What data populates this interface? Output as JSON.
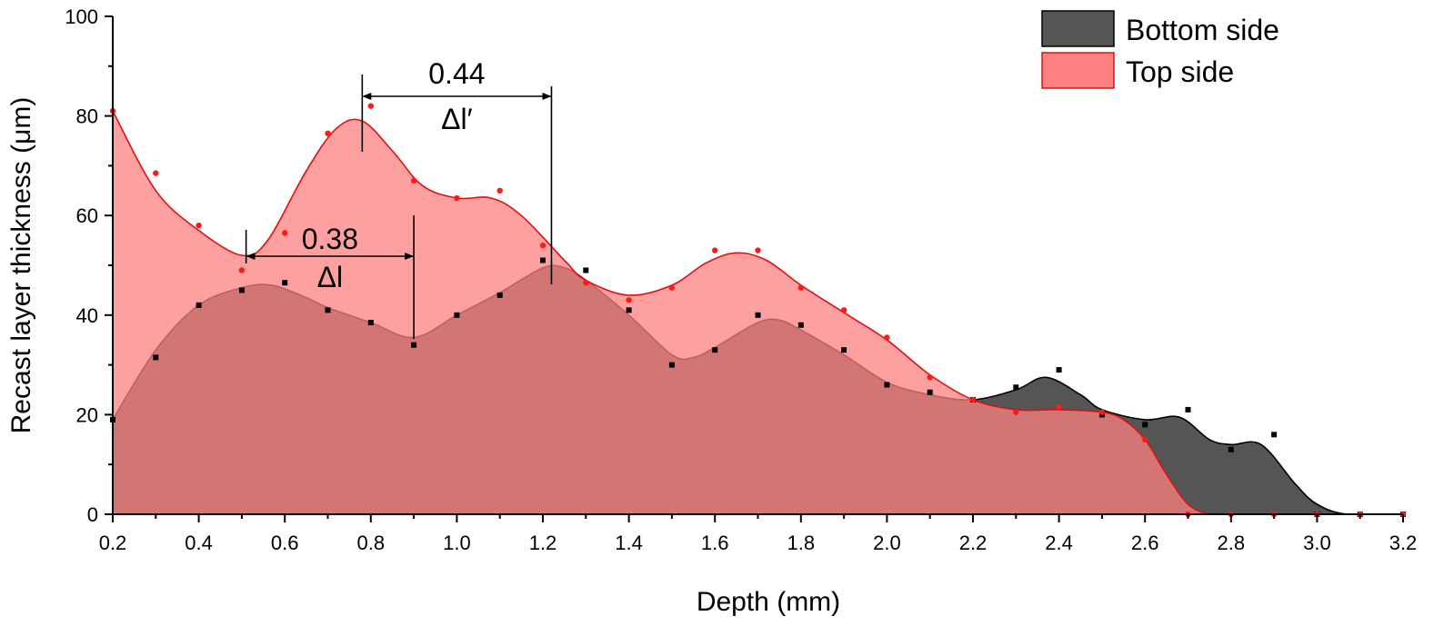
{
  "chart_data": {
    "type": "area",
    "xlabel": "Depth (mm)",
    "ylabel": "Recast layer thickness (μm)",
    "xlim": [
      0.2,
      3.2
    ],
    "ylim": [
      0,
      100
    ],
    "xticks": [
      "0.2",
      "0.4",
      "0.6",
      "0.8",
      "1.0",
      "1.2",
      "1.4",
      "1.6",
      "1.8",
      "2.0",
      "2.2",
      "2.4",
      "2.6",
      "2.8",
      "3.0",
      "3.2"
    ],
    "yticks": [
      "0",
      "20",
      "40",
      "60",
      "80",
      "100"
    ],
    "legend_position": "top-right",
    "series": [
      {
        "name": "Bottom side",
        "color": "#555555",
        "marker": "square",
        "points": {
          "x": [
            0.2,
            0.3,
            0.4,
            0.5,
            0.6,
            0.7,
            0.8,
            0.9,
            1.0,
            1.1,
            1.2,
            1.3,
            1.4,
            1.5,
            1.6,
            1.7,
            1.8,
            1.9,
            2.0,
            2.1,
            2.2,
            2.3,
            2.4,
            2.5,
            2.6,
            2.7,
            2.8,
            2.9,
            3.0,
            3.1,
            3.2
          ],
          "y": [
            19,
            31.5,
            42,
            45,
            46.5,
            41,
            38.5,
            34,
            40,
            44,
            51,
            49,
            41,
            30,
            33,
            40,
            38,
            33,
            26,
            24.5,
            23,
            25.5,
            29,
            20,
            18,
            21,
            13,
            16,
            0,
            0,
            0
          ]
        },
        "curve": {
          "x": [
            0.2,
            0.3,
            0.4,
            0.5,
            0.57,
            0.65,
            0.7,
            0.8,
            0.9,
            1.0,
            1.1,
            1.2,
            1.25,
            1.3,
            1.4,
            1.5,
            1.55,
            1.6,
            1.7,
            1.75,
            1.8,
            1.9,
            2.0,
            2.1,
            2.2,
            2.3,
            2.37,
            2.45,
            2.5,
            2.6,
            2.68,
            2.75,
            2.8,
            2.87,
            2.95,
            3.0,
            3.07,
            3.2
          ],
          "y": [
            19,
            33,
            42,
            45.5,
            46,
            43.5,
            41.5,
            38.5,
            35.5,
            40,
            44.5,
            49.5,
            49.5,
            47,
            40,
            32,
            31.5,
            33.5,
            38.5,
            39,
            37,
            32,
            26.5,
            24,
            23,
            25,
            27.5,
            24,
            21,
            19,
            19.5,
            15,
            14,
            14,
            6,
            2,
            0,
            0
          ]
        }
      },
      {
        "name": "Top side",
        "color": "#ff8080",
        "marker": "circle",
        "points": {
          "x": [
            0.2,
            0.3,
            0.4,
            0.5,
            0.6,
            0.7,
            0.8,
            0.9,
            1.0,
            1.1,
            1.2,
            1.3,
            1.4,
            1.5,
            1.6,
            1.7,
            1.8,
            1.9,
            2.0,
            2.1,
            2.2,
            2.3,
            2.4,
            2.5,
            2.6,
            2.7,
            2.8,
            2.9,
            3.0,
            3.1,
            3.2
          ],
          "y": [
            81,
            68.5,
            58,
            49,
            56.5,
            76.5,
            82,
            67,
            63.5,
            65,
            54,
            46.5,
            43,
            45.5,
            53,
            53,
            45.5,
            41,
            35.5,
            27.5,
            23,
            20.5,
            21.5,
            20.5,
            15,
            0,
            0,
            0,
            0,
            0,
            0
          ]
        },
        "curve": {
          "x": [
            0.2,
            0.3,
            0.4,
            0.5,
            0.56,
            0.65,
            0.72,
            0.78,
            0.85,
            0.92,
            1.0,
            1.08,
            1.15,
            1.25,
            1.3,
            1.4,
            1.5,
            1.58,
            1.65,
            1.72,
            1.8,
            1.9,
            2.0,
            2.1,
            2.2,
            2.3,
            2.4,
            2.5,
            2.55,
            2.6,
            2.65,
            2.7,
            2.75,
            2.8,
            3.2
          ],
          "y": [
            81,
            65,
            57,
            52,
            55,
            69,
            77.5,
            79,
            73,
            66,
            63.5,
            63.5,
            60,
            51,
            47,
            44,
            46,
            50.5,
            52.5,
            51,
            46,
            40.5,
            35,
            28,
            23,
            21,
            21,
            20.5,
            19,
            15,
            8,
            2,
            0,
            0,
            0
          ]
        }
      }
    ],
    "annotations": [
      {
        "value": "0.38",
        "symbol": "Δl",
        "from_x": 0.51,
        "to_x": 0.9
      },
      {
        "value": "0.44",
        "symbol": "Δl′",
        "from_x": 0.78,
        "to_x": 1.22
      }
    ]
  }
}
